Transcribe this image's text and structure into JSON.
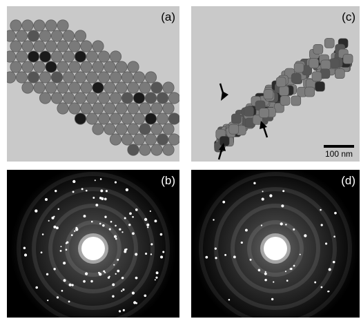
{
  "panels": {
    "a": {
      "label": "(a)"
    },
    "b": {
      "label": "(b)"
    },
    "c": {
      "label": "(c)"
    },
    "d": {
      "label": "(d)"
    }
  },
  "scale_bar": {
    "text": "100 nm"
  },
  "colors": {
    "tem_background": "#c9c9c9",
    "particle": "#707070",
    "diffraction_background": "#000000",
    "spot": "#ffffff"
  }
}
